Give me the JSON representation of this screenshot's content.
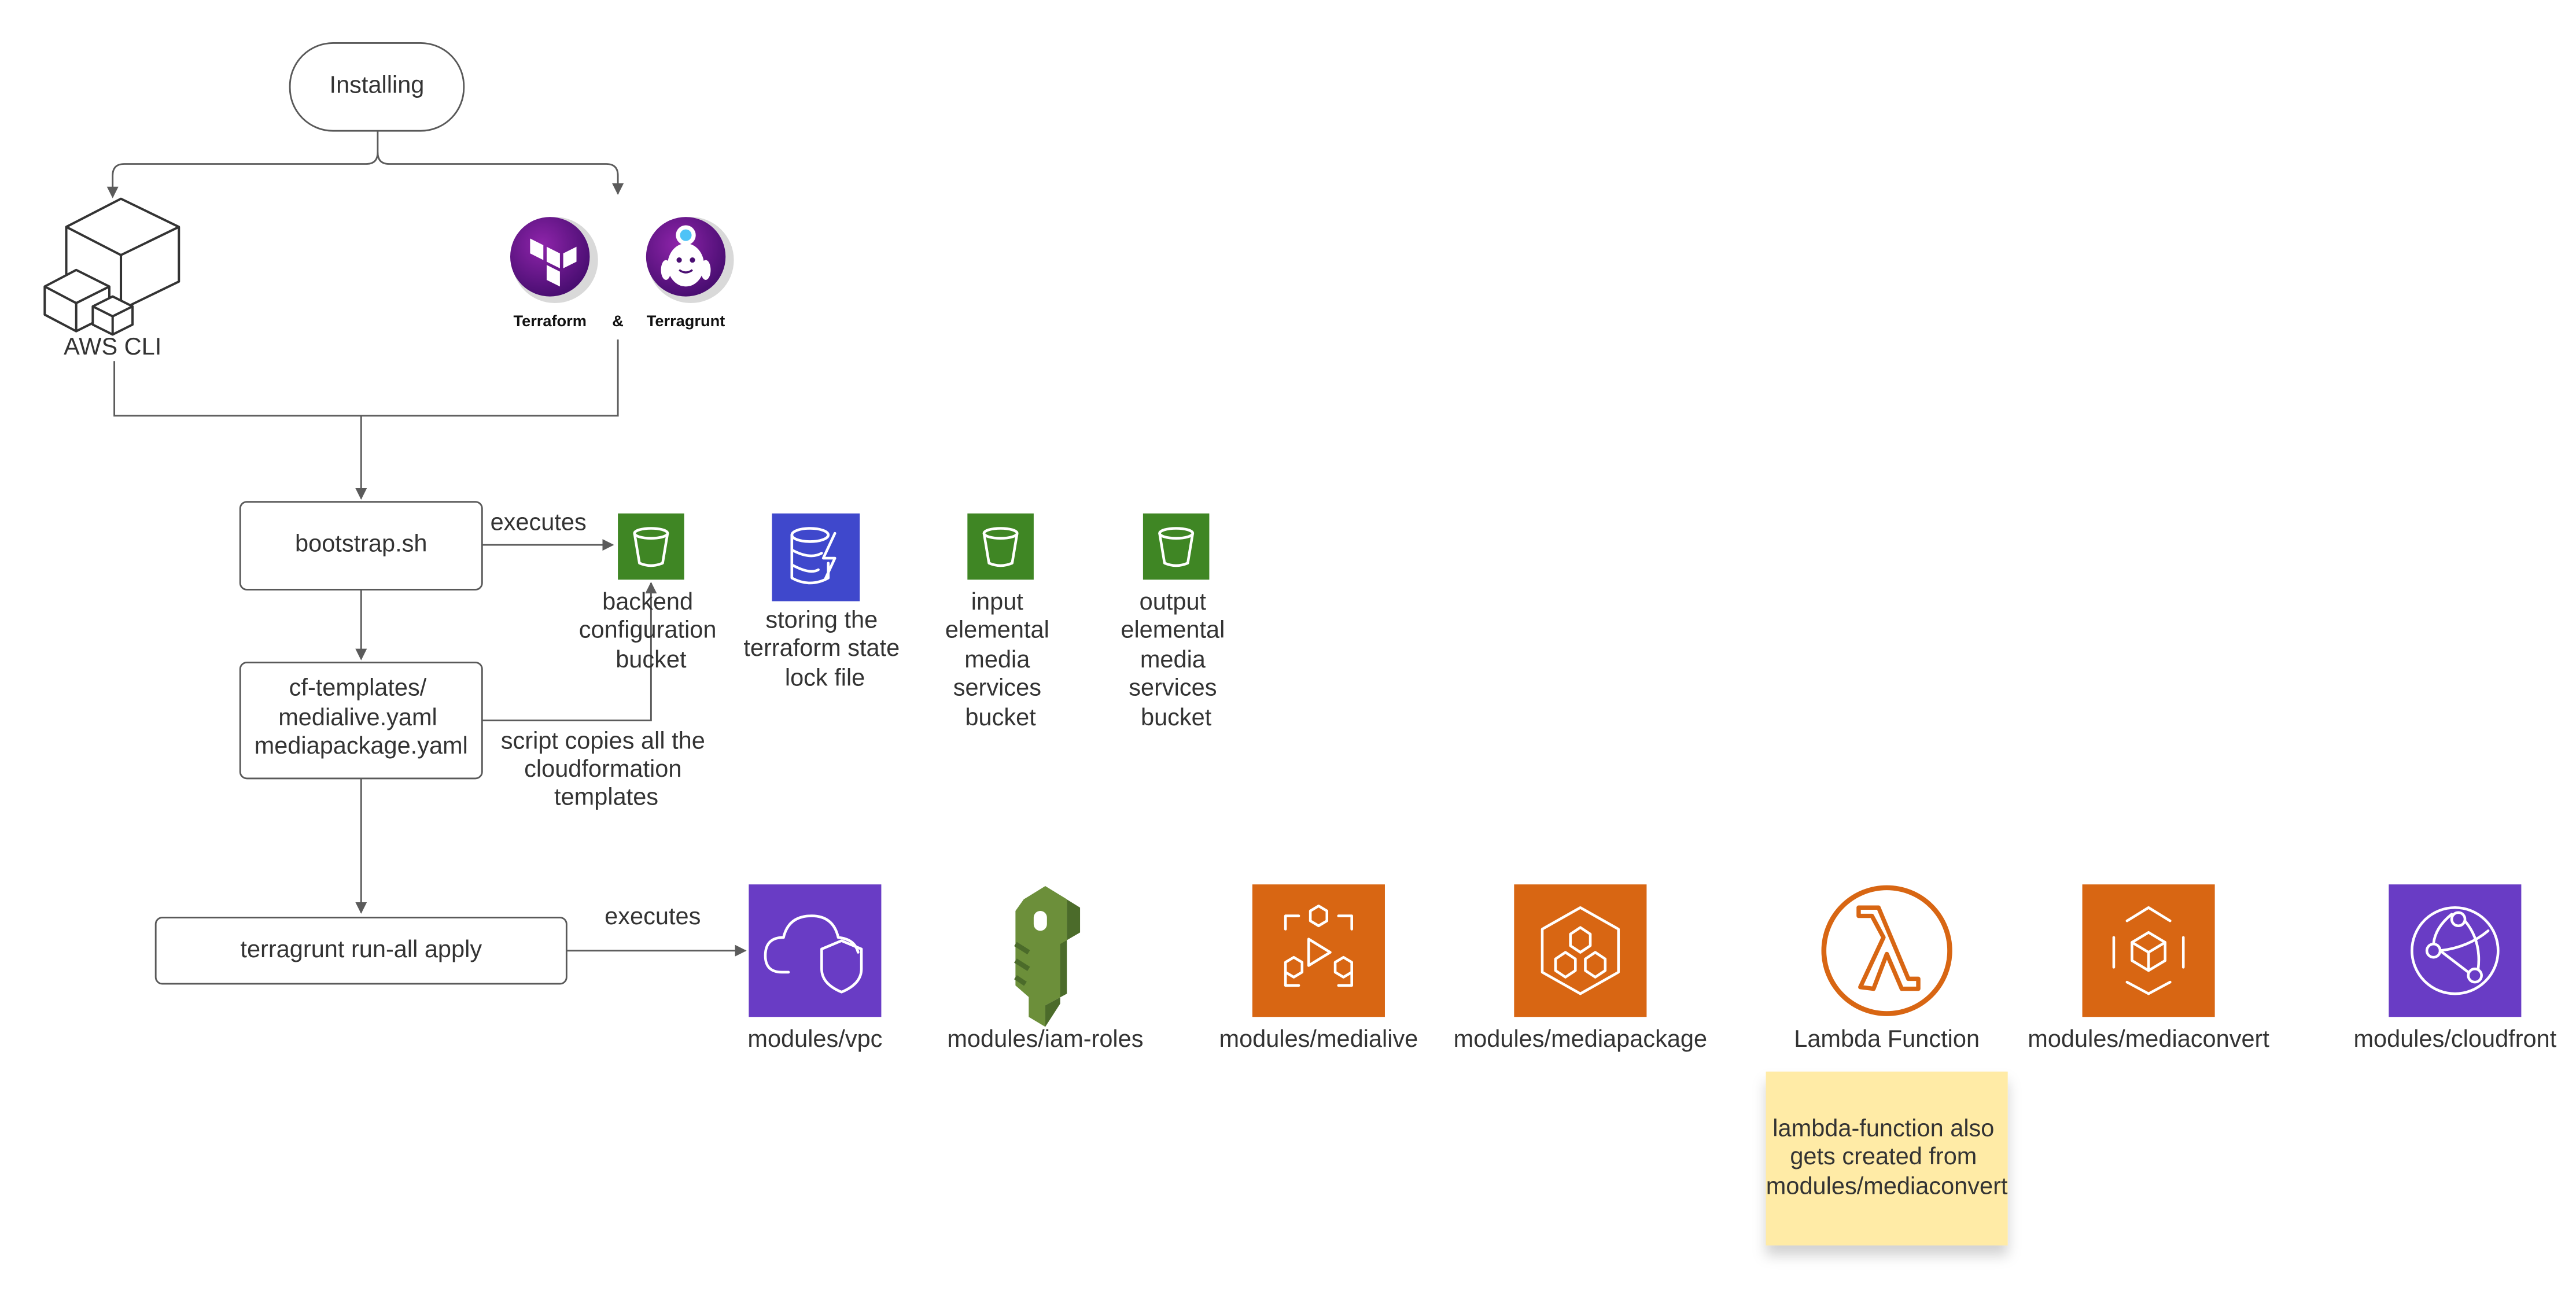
{
  "nodes": {
    "installing": "Installing",
    "aws_cli": "AWS CLI",
    "terraform": "Terraform",
    "ampersand": "&",
    "terragrunt": "Terragrunt",
    "bootstrap": "bootstrap.sh",
    "cf_templates": [
      "cf-templates/",
      "medialive.yaml",
      "mediapackage.yaml"
    ],
    "run_all": "terragrunt run-all apply"
  },
  "edge_labels": {
    "executes_bootstrap": "executes",
    "script_copies": [
      "script copies all the",
      "cloudformation",
      "templates"
    ],
    "executes_run_all": "executes"
  },
  "buckets": [
    {
      "lines": [
        "backend",
        "configuration",
        "bucket"
      ]
    },
    {
      "lines": [
        "storing the",
        "terraform state",
        "lock file"
      ]
    },
    {
      "lines": [
        "input",
        "elemental",
        "media",
        "services",
        "bucket"
      ]
    },
    {
      "lines": [
        "output",
        "elemental",
        "media",
        "services",
        "bucket"
      ]
    }
  ],
  "modules": [
    {
      "label": "modules/vpc",
      "icon": "vpc-shield-icon",
      "color": "#693CC5"
    },
    {
      "label": "modules/iam-roles",
      "icon": "iam-key-icon",
      "color": "#6C8F3A"
    },
    {
      "label": "modules/medialive",
      "icon": "medialive-icon",
      "color": "#D86613"
    },
    {
      "label": "modules/mediapackage",
      "icon": "mediapackage-icon",
      "color": "#D86613"
    },
    {
      "label": "Lambda Function",
      "icon": "lambda-icon",
      "color": "#D86613"
    },
    {
      "label": "modules/mediaconvert",
      "icon": "mediaconvert-icon",
      "color": "#D86613"
    },
    {
      "label": "modules/cloudfront",
      "icon": "cloudfront-icon",
      "color": "#693CC5"
    }
  ],
  "note": [
    "lambda-function also",
    "gets created from",
    "modules/mediaconvert"
  ],
  "colors": {
    "s3_green": "#3F8624",
    "dynamodb_blue": "#3F48CC",
    "note_yellow": "#FFEBA6",
    "terraform_purple": "#6A1B9A"
  }
}
